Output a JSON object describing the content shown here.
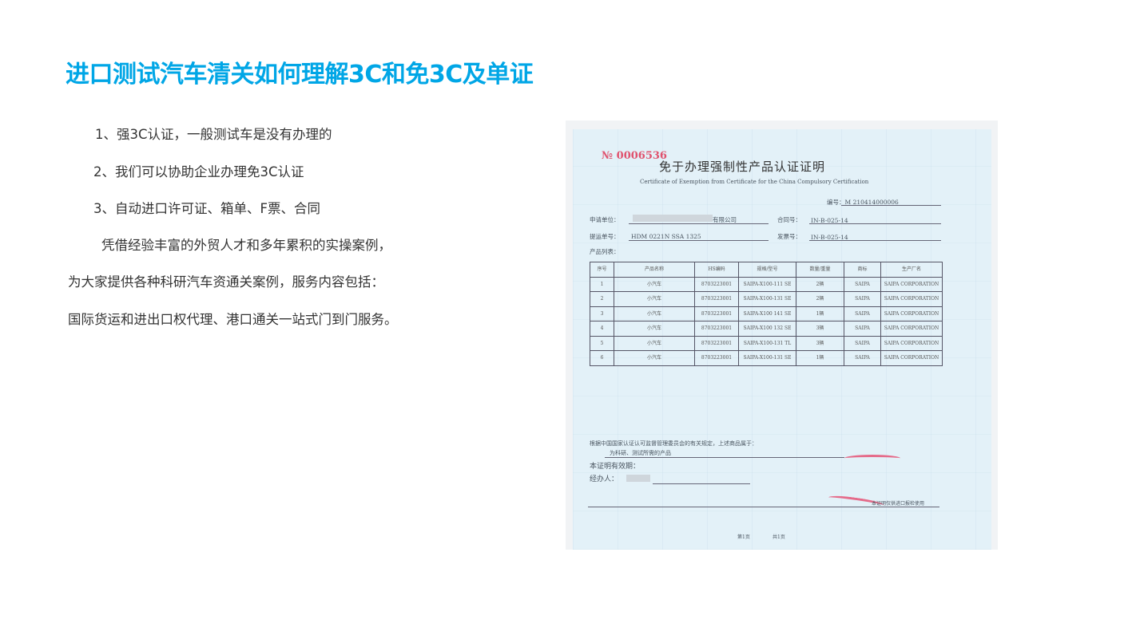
{
  "title": "进口测试汽车清关如何理解3C和免3C及单证",
  "lines": [
    "1、强3C认证，一般测试车是没有办理的",
    "2、我们可以协助企业办理免3C认证",
    "3、自动进口许可证、箱单、F票、合同",
    "凭借经验丰富的外贸人才和多年累积的实操案例，",
    "为大家提供各种科研汽车资通关案例，服务内容包括：",
    "国际货运和进出口权代理、港口通关一站式门到门服务。"
  ],
  "colors": {
    "title": "#00a6e6",
    "stamp": "#e56b8a"
  },
  "certificate": {
    "no": "№ 0006536",
    "title": "免于办理强制性产品认证证明",
    "subtitle": "Certificate of Exemption from Certificate for the China Compulsory Certification",
    "serial_label": "编号：",
    "serial": "M 210414000006",
    "applicant_label": "申请单位：",
    "applicant": "有限公司",
    "contract_label": "合同号：",
    "contract": "IN-B-025-14",
    "bl_label": "提运单号：",
    "bl": "HDM 0221N SSA 1325",
    "invoice_label": "发票号：",
    "invoice": "IN-B-025-14",
    "list_label": "产品列表：",
    "headers": [
      "序号",
      "产品名称",
      "HS编码",
      "规格/型号",
      "数量/重量",
      "商标",
      "生产厂名"
    ],
    "rows": [
      [
        "1",
        "小汽车",
        "8703223001",
        "SAIPA-X100-111 SE",
        "2辆",
        "SAIPA",
        "SAIPA CORPORATION"
      ],
      [
        "2",
        "小汽车",
        "8703223001",
        "SAIPA-X100-131 SE",
        "2辆",
        "SAIPA",
        "SAIPA CORPORATION"
      ],
      [
        "3",
        "小汽车",
        "8703223001",
        "SAIPA-X100 141 SE",
        "1辆",
        "SAIPA",
        "SAIPA CORPORATION"
      ],
      [
        "4",
        "小汽车",
        "8703223001",
        "SAIPA-X100 132 SE",
        "3辆",
        "SAIPA",
        "SAIPA CORPORATION"
      ],
      [
        "5",
        "小汽车",
        "8703223001",
        "SAIPA-X100-131 TL",
        "3辆",
        "SAIPA",
        "SAIPA CORPORATION"
      ],
      [
        "6",
        "小汽车",
        "8703223001",
        "SAIPA-X100-131 SE",
        "1辆",
        "SAIPA",
        "SAIPA CORPORATION"
      ]
    ],
    "basis": "根据中国国家认证认可监督管理委员会的有关规定，上述商品属于：",
    "category": "为科研、测试所需的产品",
    "validity": "本证明有效期：",
    "handler": "经办人：",
    "note": "本证明仅供进口报检使用",
    "page": "第1页",
    "total": "共1页"
  }
}
